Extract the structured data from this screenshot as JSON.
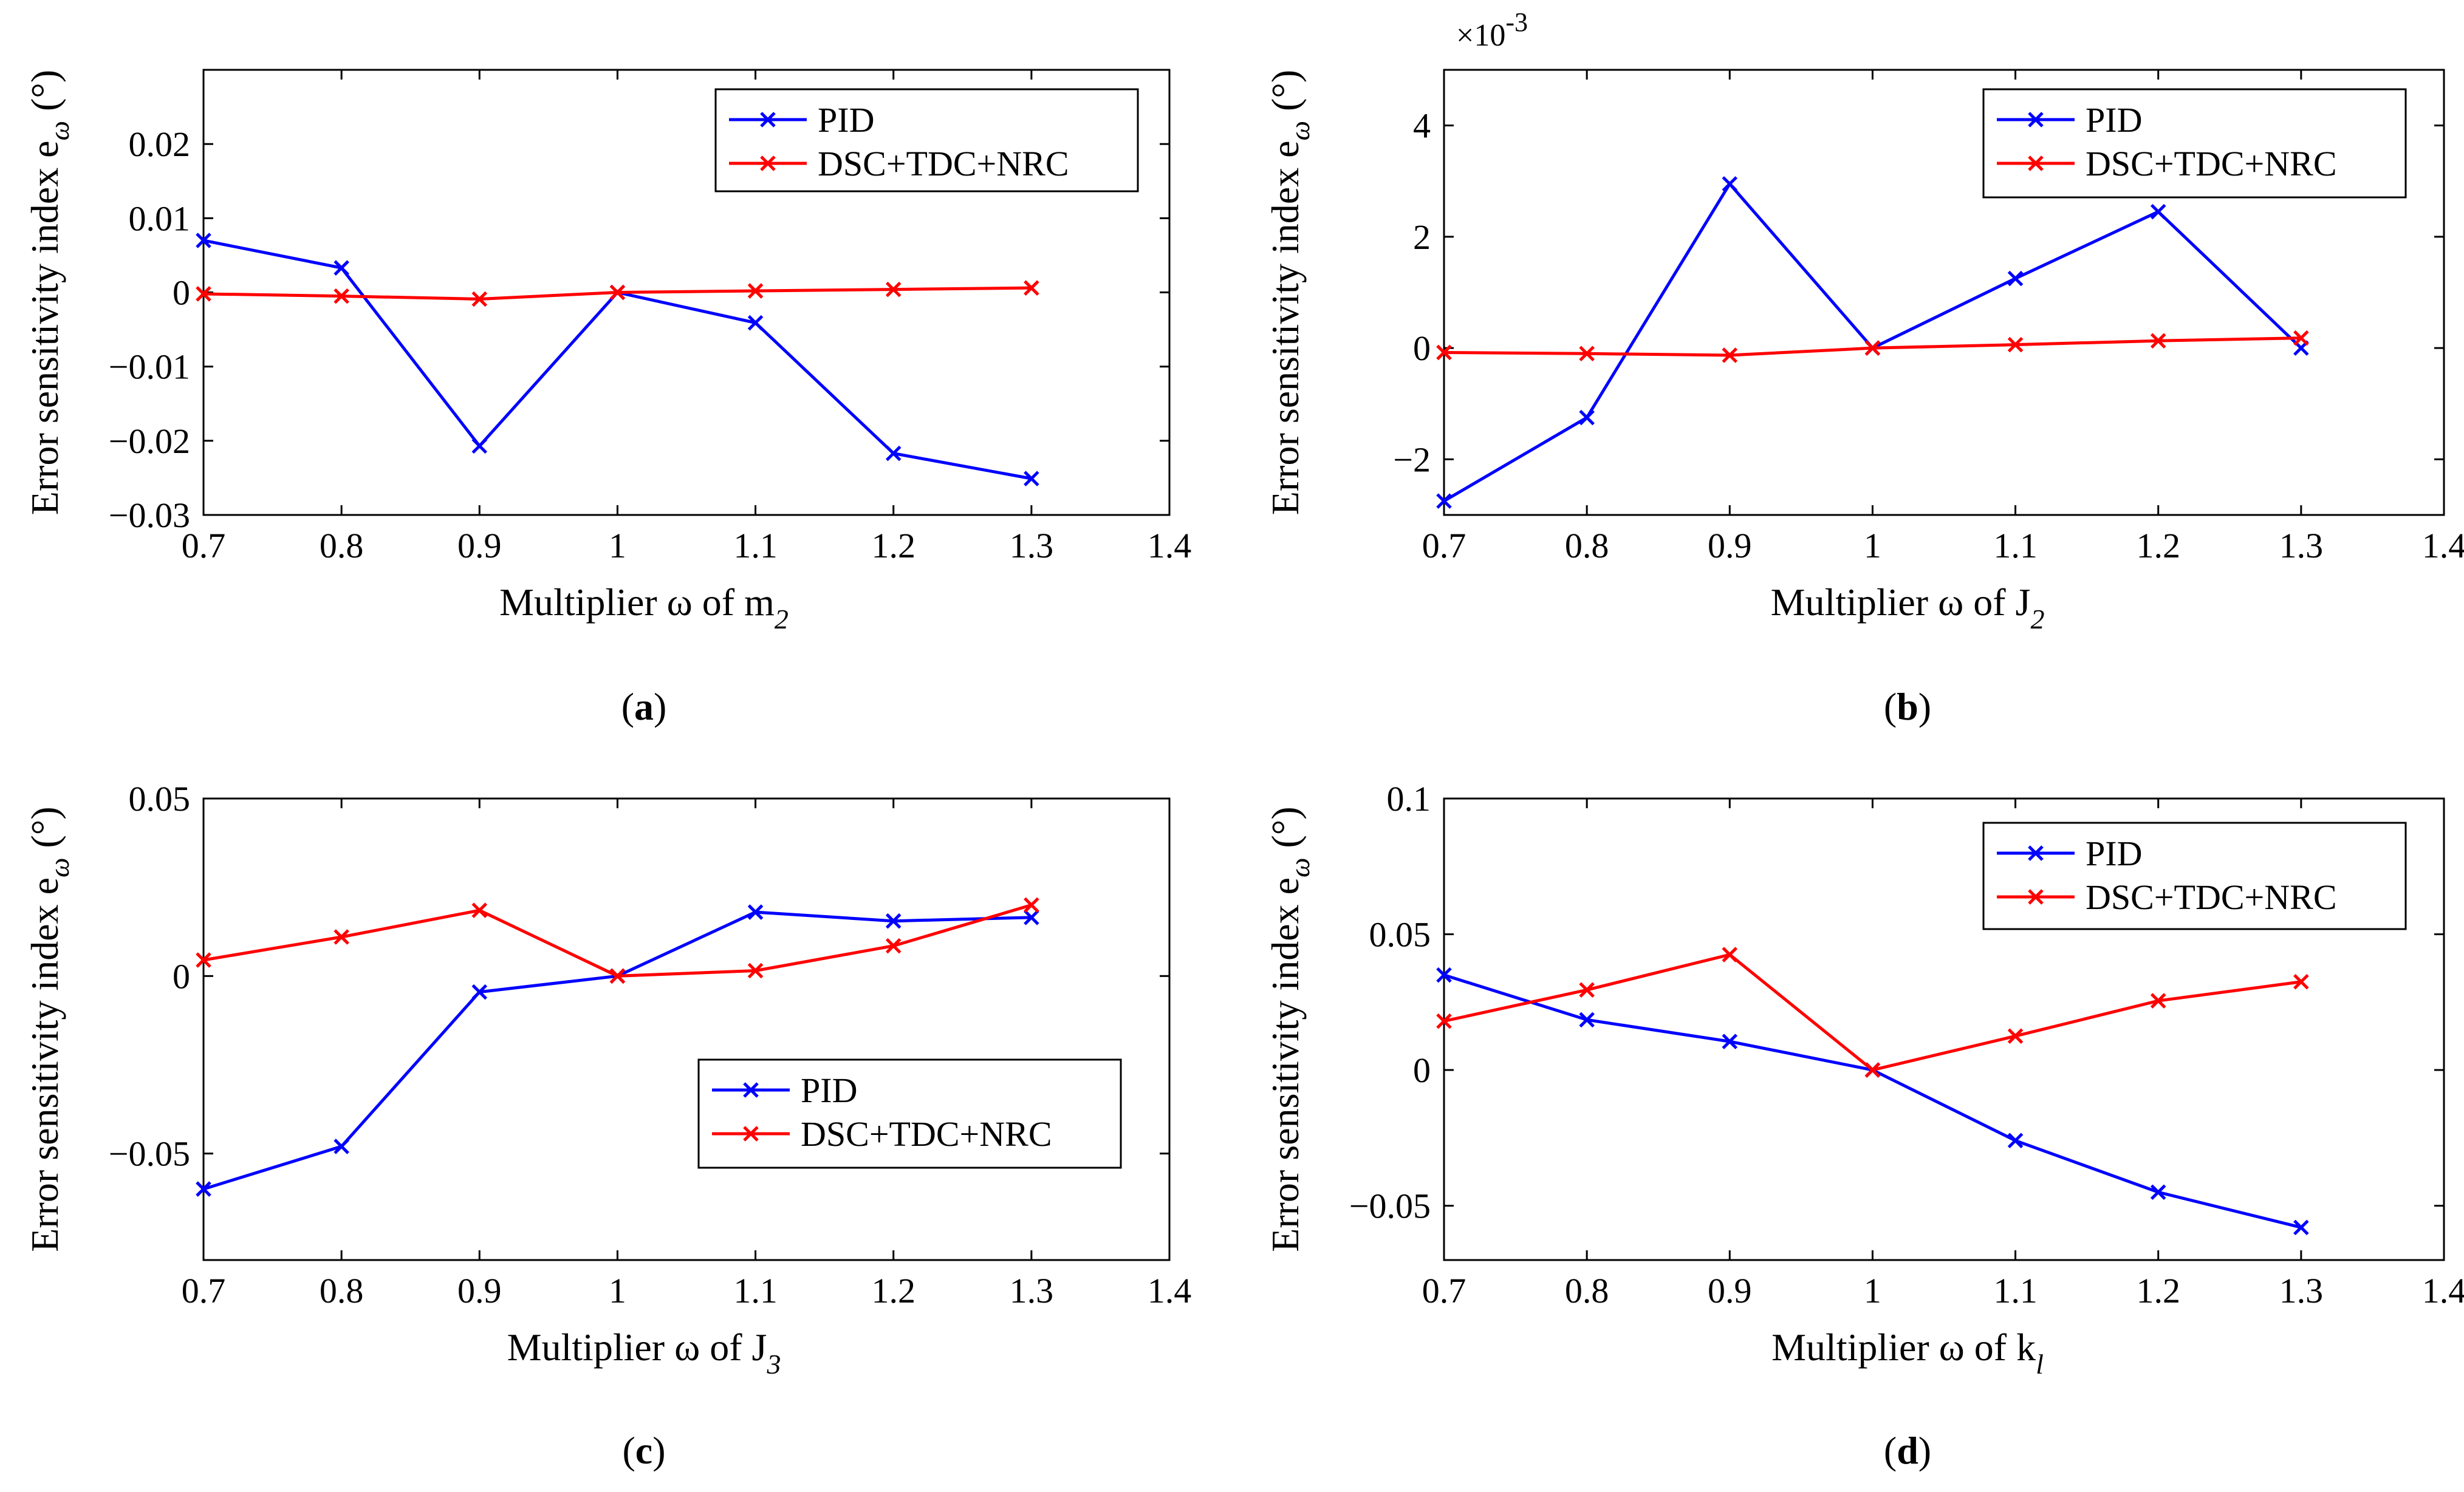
{
  "colors": {
    "pid": "#0000ff",
    "dsc": "#ff0000",
    "axis": "#000000"
  },
  "chart_data": [
    {
      "type": "line",
      "panel": "(a)",
      "caption_letter": "a",
      "xlabel": "Multiplier ω of m",
      "xlabel_sub": "2",
      "ylabel": "Error sensitivity index e",
      "ylabel_sub": "ω",
      "ylabel_unit": "(°)",
      "xlim": [
        0.7,
        1.4
      ],
      "ylim": [
        -0.03,
        0.03
      ],
      "x_ticks": [
        0.7,
        0.8,
        0.9,
        1.0,
        1.1,
        1.2,
        1.3,
        1.4
      ],
      "x_tick_labels": [
        "0.7",
        "0.8",
        "0.9",
        "1",
        "1.1",
        "1.2",
        "1.3",
        "1.4"
      ],
      "y_ticks": [
        -0.03,
        -0.02,
        -0.01,
        0,
        0.01,
        0.02
      ],
      "y_tick_labels": [
        "−0.03",
        "−0.02",
        "−0.01",
        "0",
        "0.01",
        "0.02"
      ],
      "y_exponent": "",
      "legend_position": "top-right",
      "x": [
        0.7,
        0.8,
        0.9,
        1.0,
        1.1,
        1.2,
        1.3
      ],
      "series": [
        {
          "name": "PID",
          "color": "#0000ff",
          "values": [
            0.007,
            0.0033,
            -0.0207,
            0.0,
            -0.0041,
            -0.0217,
            -0.0251
          ]
        },
        {
          "name": "DSC+TDC+NRC",
          "color": "#ff0000",
          "values": [
            -0.0002,
            -0.0005,
            -0.0009,
            0.0,
            0.0002,
            0.0004,
            0.0006
          ]
        }
      ]
    },
    {
      "type": "line",
      "panel": "(b)",
      "caption_letter": "b",
      "xlabel": "Multiplier ω of J",
      "xlabel_sub": "2",
      "ylabel": "Error sensitivity index e",
      "ylabel_sub": "ω",
      "ylabel_unit": "(°)",
      "xlim": [
        0.7,
        1.4
      ],
      "ylim": [
        -3,
        5
      ],
      "x_ticks": [
        0.7,
        0.8,
        0.9,
        1.0,
        1.1,
        1.2,
        1.3,
        1.4
      ],
      "x_tick_labels": [
        "0.7",
        "0.8",
        "0.9",
        "1",
        "1.1",
        "1.2",
        "1.3",
        "1.4"
      ],
      "y_ticks": [
        -2,
        0,
        2,
        4
      ],
      "y_tick_labels": [
        "−2",
        "0",
        "2",
        "4"
      ],
      "y_exponent": "×10",
      "y_exponent_power": "-3",
      "legend_position": "top-right",
      "x": [
        0.7,
        0.8,
        0.9,
        1.0,
        1.1,
        1.2,
        1.3
      ],
      "series": [
        {
          "name": "PID",
          "color": "#0000ff",
          "values": [
            -2.75,
            -1.25,
            2.95,
            0.0,
            1.25,
            2.45,
            0.0
          ]
        },
        {
          "name": "DSC+TDC+NRC",
          "color": "#ff0000",
          "values": [
            -0.08,
            -0.1,
            -0.13,
            0.0,
            0.06,
            0.13,
            0.18
          ]
        }
      ]
    },
    {
      "type": "line",
      "panel": "(c)",
      "caption_letter": "c",
      "xlabel": "Multiplier ω of J",
      "xlabel_sub": "3",
      "ylabel": "Error sensitivity index e",
      "ylabel_sub": "ω",
      "ylabel_unit": "(°)",
      "xlim": [
        0.7,
        1.4
      ],
      "ylim": [
        -0.08,
        0.05
      ],
      "x_ticks": [
        0.7,
        0.8,
        0.9,
        1.0,
        1.1,
        1.2,
        1.3,
        1.4
      ],
      "x_tick_labels": [
        "0.7",
        "0.8",
        "0.9",
        "1",
        "1.1",
        "1.2",
        "1.3",
        "1.4"
      ],
      "y_ticks": [
        -0.05,
        0,
        0.05
      ],
      "y_tick_labels": [
        "−0.05",
        "0",
        "0.05"
      ],
      "y_exponent": "",
      "legend_position": "bottom-right",
      "x": [
        0.7,
        0.8,
        0.9,
        1.0,
        1.1,
        1.2,
        1.3
      ],
      "series": [
        {
          "name": "PID",
          "color": "#0000ff",
          "values": [
            -0.06,
            -0.048,
            -0.0045,
            0.0,
            0.018,
            0.0155,
            0.0165
          ]
        },
        {
          "name": "DSC+TDC+NRC",
          "color": "#ff0000",
          "values": [
            0.0045,
            0.011,
            0.0185,
            0.0,
            0.0015,
            0.0085,
            0.02
          ]
        }
      ]
    },
    {
      "type": "line",
      "panel": "(d)",
      "caption_letter": "d",
      "xlabel": "Multiplier ω of k",
      "xlabel_sub": "l",
      "ylabel": "Error sensitivity index e",
      "ylabel_sub": "ω",
      "ylabel_unit": "(°)",
      "xlim": [
        0.7,
        1.4
      ],
      "ylim": [
        -0.07,
        0.1
      ],
      "x_ticks": [
        0.7,
        0.8,
        0.9,
        1.0,
        1.1,
        1.2,
        1.3,
        1.4
      ],
      "x_tick_labels": [
        "0.7",
        "0.8",
        "0.9",
        "1",
        "1.1",
        "1.2",
        "1.3",
        "1.4"
      ],
      "y_ticks": [
        -0.05,
        0,
        0.05,
        0.1
      ],
      "y_tick_labels": [
        "−0.05",
        "0",
        "0.05",
        "0.1"
      ],
      "y_exponent": "",
      "legend_position": "top-right",
      "x": [
        0.7,
        0.8,
        0.9,
        1.0,
        1.1,
        1.2,
        1.3
      ],
      "series": [
        {
          "name": "PID",
          "color": "#0000ff",
          "values": [
            0.035,
            0.0185,
            0.0105,
            0.0,
            -0.026,
            -0.045,
            -0.058
          ]
        },
        {
          "name": "DSC+TDC+NRC",
          "color": "#ff0000",
          "values": [
            0.018,
            0.0295,
            0.0425,
            0.0,
            0.0125,
            0.0255,
            0.0325
          ]
        }
      ]
    }
  ]
}
